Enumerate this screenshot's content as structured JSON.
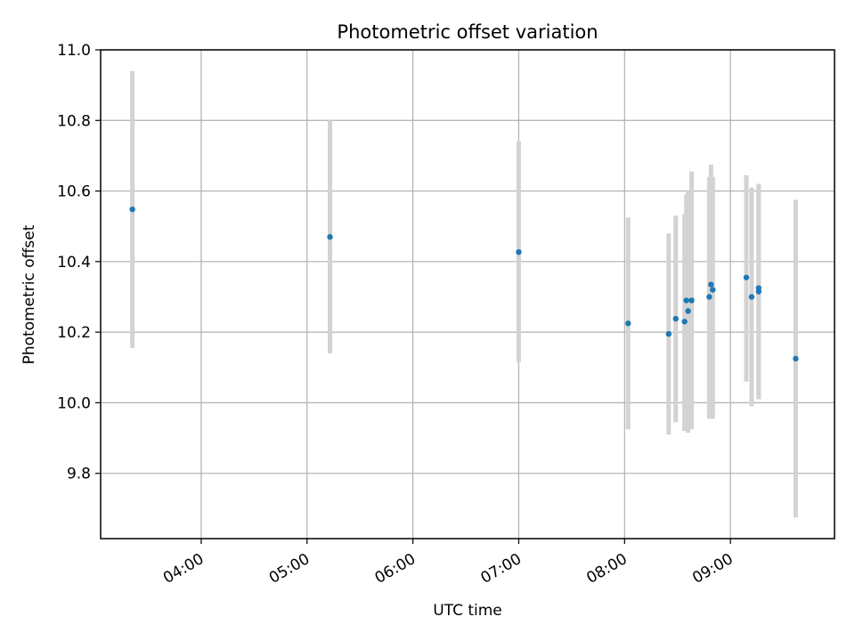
{
  "chart_data": {
    "type": "scatter",
    "title": "Photometric offset variation",
    "xlabel": "UTC time",
    "ylabel": "Photometric offset",
    "x_unit": "UTC time (HH:MM)",
    "xlim": [
      "03:03",
      "09:59"
    ],
    "ylim": [
      9.615,
      11.0
    ],
    "x_ticks": [
      "04:00",
      "05:00",
      "06:00",
      "07:00",
      "08:00",
      "09:00"
    ],
    "y_ticks": [
      "9.8",
      "10.0",
      "10.2",
      "10.4",
      "10.6",
      "10.8",
      "11.0"
    ],
    "y_tick_values": [
      9.8,
      10.0,
      10.2,
      10.4,
      10.6,
      10.8,
      11.0
    ],
    "grid": true,
    "colors": {
      "point": "#1f77b4",
      "errorbar": "#d3d3d3",
      "grid": "#b0b0b0"
    },
    "points": [
      {
        "x": "03:21",
        "y": 10.548,
        "ylow": 10.155,
        "yhigh": 10.94
      },
      {
        "x": "05:13",
        "y": 10.47,
        "ylow": 10.14,
        "yhigh": 10.8
      },
      {
        "x": "07:00",
        "y": 10.427,
        "ylow": 10.115,
        "yhigh": 10.74
      },
      {
        "x": "08:02",
        "y": 10.225,
        "ylow": 9.925,
        "yhigh": 10.525
      },
      {
        "x": "08:25",
        "y": 10.195,
        "ylow": 9.91,
        "yhigh": 10.48
      },
      {
        "x": "08:29",
        "y": 10.238,
        "ylow": 9.945,
        "yhigh": 10.53
      },
      {
        "x": "08:34",
        "y": 10.23,
        "ylow": 9.92,
        "yhigh": 10.535
      },
      {
        "x": "08:35",
        "y": 10.29,
        "ylow": 9.92,
        "yhigh": 10.59
      },
      {
        "x": "08:36",
        "y": 10.26,
        "ylow": 9.915,
        "yhigh": 10.6
      },
      {
        "x": "08:38",
        "y": 10.29,
        "ylow": 9.925,
        "yhigh": 10.655
      },
      {
        "x": "08:48",
        "y": 10.3,
        "ylow": 9.955,
        "yhigh": 10.64
      },
      {
        "x": "08:49",
        "y": 10.335,
        "ylow": 9.955,
        "yhigh": 10.675
      },
      {
        "x": "08:50",
        "y": 10.32,
        "ylow": 9.955,
        "yhigh": 10.64
      },
      {
        "x": "09:09",
        "y": 10.355,
        "ylow": 10.06,
        "yhigh": 10.645
      },
      {
        "x": "09:12",
        "y": 10.3,
        "ylow": 9.99,
        "yhigh": 10.61
      },
      {
        "x": "09:16",
        "y": 10.315,
        "ylow": 10.01,
        "yhigh": 10.62
      },
      {
        "x": "09:16",
        "y": 10.325,
        "ylow": 10.01,
        "yhigh": 10.62
      },
      {
        "x": "09:37",
        "y": 10.125,
        "ylow": 9.675,
        "yhigh": 10.575
      }
    ]
  }
}
